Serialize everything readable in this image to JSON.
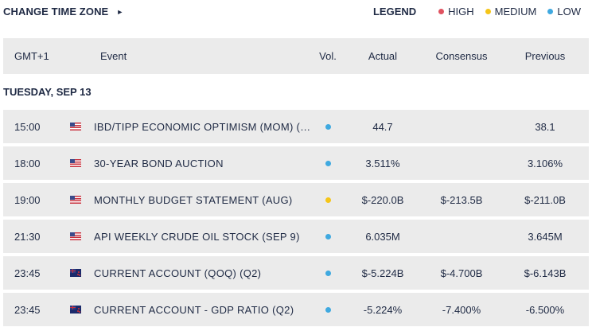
{
  "toolbar": {
    "change_tz_label": "CHANGE TIME ZONE",
    "arrow_glyph": "►",
    "legend_title": "LEGEND",
    "legend": [
      {
        "label": "HIGH",
        "color": "#e05260"
      },
      {
        "label": "MEDIUM",
        "color": "#f5c518"
      },
      {
        "label": "LOW",
        "color": "#3fa9e0"
      }
    ]
  },
  "table": {
    "headers": {
      "time": "GMT+1",
      "event": "Event",
      "vol": "Vol.",
      "actual": "Actual",
      "consensus": "Consensus",
      "previous": "Previous"
    },
    "day_label": "TUESDAY, SEP 13",
    "rows": [
      {
        "time": "15:00",
        "flag": "us-flag-icon",
        "event": "IBD/TIPP ECONOMIC OPTIMISM (MOM) (S...",
        "vol_color": "#3fa9e0",
        "actual": "44.7",
        "consensus": "",
        "previous": "38.1"
      },
      {
        "time": "18:00",
        "flag": "us-flag-icon",
        "event": "30-YEAR BOND AUCTION",
        "vol_color": "#3fa9e0",
        "actual": "3.511%",
        "consensus": "",
        "previous": "3.106%"
      },
      {
        "time": "19:00",
        "flag": "us-flag-icon",
        "event": "MONTHLY BUDGET STATEMENT (AUG)",
        "vol_color": "#f5c518",
        "actual": "$-220.0B",
        "consensus": "$-213.5B",
        "previous": "$-211.0B"
      },
      {
        "time": "21:30",
        "flag": "us-flag-icon",
        "event": "API WEEKLY CRUDE OIL STOCK (SEP 9)",
        "vol_color": "#3fa9e0",
        "actual": "6.035M",
        "consensus": "",
        "previous": "3.645M"
      },
      {
        "time": "23:45",
        "flag": "nz-flag-icon",
        "event": "CURRENT ACCOUNT (QOQ) (Q2)",
        "vol_color": "#3fa9e0",
        "actual": "$-5.224B",
        "consensus": "$-4.700B",
        "previous": "$-6.143B"
      },
      {
        "time": "23:45",
        "flag": "nz-flag-icon",
        "event": "CURRENT ACCOUNT - GDP RATIO (Q2)",
        "vol_color": "#3fa9e0",
        "actual": "-5.224%",
        "consensus": "-7.400%",
        "previous": "-6.500%"
      }
    ]
  }
}
